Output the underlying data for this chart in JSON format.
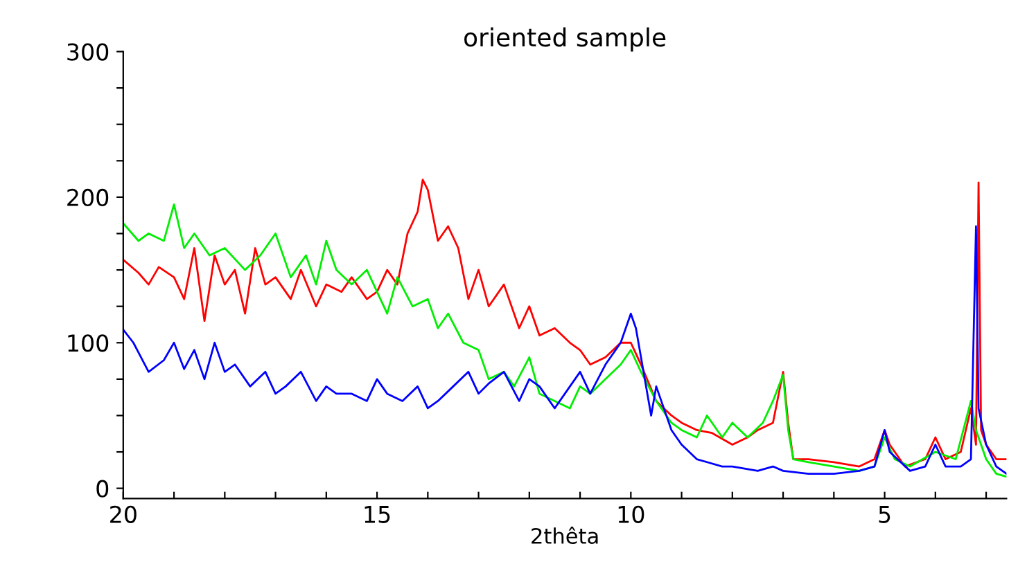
{
  "chart_data": {
    "type": "line",
    "title": "oriented sample",
    "xlabel": "2thêta",
    "xlim": [
      20,
      2.6
    ],
    "ylim": [
      -7,
      300
    ],
    "xticks": [
      20,
      {
        "value": 19,
        "label": null
      },
      {
        "value": 18,
        "label": null
      },
      {
        "value": 17,
        "label": null
      },
      {
        "value": 16,
        "label": null
      },
      15,
      {
        "value": 14,
        "label": null
      },
      {
        "value": 13,
        "label": null
      },
      {
        "value": 12,
        "label": null
      },
      {
        "value": 11,
        "label": null
      },
      10,
      {
        "value": 9,
        "label": null
      },
      {
        "value": 8,
        "label": null
      },
      {
        "value": 7,
        "label": null
      },
      {
        "value": 6,
        "label": null
      },
      5,
      {
        "value": 4,
        "label": null
      },
      {
        "value": 3,
        "label": null
      }
    ],
    "yticks": [
      0,
      {
        "value": 25,
        "label": null
      },
      {
        "value": 50,
        "label": null
      },
      {
        "value": 75,
        "label": null
      },
      100,
      {
        "value": 125,
        "label": null
      },
      {
        "value": 150,
        "label": null
      },
      {
        "value": 175,
        "label": null
      },
      200,
      {
        "value": 225,
        "label": null
      },
      {
        "value": 250,
        "label": null
      },
      {
        "value": 275,
        "label": null
      },
      300
    ],
    "grid": false,
    "legend": false,
    "marker": "none",
    "line_style": "solid",
    "series": [
      {
        "color": "#ff0000",
        "x": [
          20,
          19.7,
          19.5,
          19.3,
          19.0,
          18.8,
          18.6,
          18.4,
          18.2,
          18.0,
          17.8,
          17.6,
          17.4,
          17.2,
          17.0,
          16.7,
          16.5,
          16.2,
          16.0,
          15.7,
          15.5,
          15.2,
          15.0,
          14.8,
          14.6,
          14.4,
          14.2,
          14.1,
          14.0,
          13.8,
          13.6,
          13.4,
          13.2,
          13.0,
          12.8,
          12.5,
          12.2,
          12.0,
          11.8,
          11.5,
          11.2,
          11.0,
          10.8,
          10.5,
          10.2,
          10.0,
          9.8,
          9.5,
          9.2,
          9.0,
          8.7,
          8.4,
          8.0,
          7.7,
          7.5,
          7.2,
          7.0,
          6.9,
          6.8,
          6.5,
          6.0,
          5.5,
          5.2,
          5.0,
          4.9,
          4.6,
          4.2,
          4.0,
          3.8,
          3.5,
          3.3,
          3.2,
          3.15,
          3.1,
          3.0,
          2.8,
          2.6
        ],
        "values": [
          157,
          148,
          140,
          152,
          145,
          130,
          165,
          115,
          160,
          140,
          150,
          120,
          165,
          140,
          145,
          130,
          150,
          125,
          140,
          135,
          145,
          130,
          135,
          150,
          140,
          175,
          190,
          212,
          205,
          170,
          180,
          165,
          130,
          150,
          125,
          140,
          110,
          125,
          105,
          110,
          100,
          95,
          85,
          90,
          100,
          100,
          85,
          60,
          50,
          45,
          40,
          38,
          30,
          35,
          40,
          45,
          80,
          45,
          20,
          20,
          18,
          15,
          20,
          40,
          30,
          15,
          20,
          35,
          20,
          25,
          55,
          30,
          210,
          40,
          30,
          20,
          20
        ]
      },
      {
        "color": "#00ee00",
        "x": [
          20,
          19.7,
          19.5,
          19.2,
          19.0,
          18.8,
          18.6,
          18.3,
          18.0,
          17.6,
          17.3,
          17.0,
          16.7,
          16.4,
          16.2,
          16.0,
          15.8,
          15.5,
          15.2,
          15.0,
          14.8,
          14.6,
          14.3,
          14.0,
          13.8,
          13.6,
          13.3,
          13.0,
          12.8,
          12.5,
          12.3,
          12.0,
          11.8,
          11.5,
          11.2,
          11.0,
          10.8,
          10.5,
          10.2,
          10.0,
          9.8,
          9.5,
          9.2,
          9.0,
          8.7,
          8.5,
          8.2,
          8.0,
          7.7,
          7.4,
          7.2,
          7.0,
          6.9,
          6.8,
          6.5,
          6.0,
          5.5,
          5.2,
          5.0,
          4.8,
          4.5,
          4.0,
          3.6,
          3.3,
          3.2,
          3.0,
          2.8,
          2.6
        ],
        "values": [
          182,
          170,
          175,
          170,
          195,
          165,
          175,
          160,
          165,
          150,
          160,
          175,
          145,
          160,
          140,
          170,
          150,
          140,
          150,
          135,
          120,
          145,
          125,
          130,
          110,
          120,
          100,
          95,
          75,
          80,
          70,
          90,
          65,
          60,
          55,
          70,
          65,
          75,
          85,
          95,
          80,
          60,
          45,
          40,
          35,
          50,
          35,
          45,
          35,
          45,
          60,
          78,
          40,
          20,
          18,
          15,
          12,
          15,
          35,
          20,
          15,
          25,
          20,
          60,
          40,
          20,
          10,
          8
        ]
      },
      {
        "color": "#0000ff",
        "x": [
          20,
          19.8,
          19.5,
          19.2,
          19.0,
          18.8,
          18.6,
          18.4,
          18.2,
          18.0,
          17.8,
          17.5,
          17.2,
          17.0,
          16.8,
          16.5,
          16.2,
          16.0,
          15.8,
          15.5,
          15.2,
          15.0,
          14.8,
          14.5,
          14.2,
          14.0,
          13.8,
          13.5,
          13.2,
          13.0,
          12.8,
          12.5,
          12.2,
          12.0,
          11.8,
          11.5,
          11.2,
          11.0,
          10.8,
          10.5,
          10.2,
          10.0,
          9.9,
          9.8,
          9.6,
          9.5,
          9.2,
          9.0,
          8.7,
          8.5,
          8.2,
          8.0,
          7.5,
          7.2,
          7.0,
          6.5,
          6.0,
          5.5,
          5.2,
          5.0,
          4.9,
          4.5,
          4.2,
          4.0,
          3.8,
          3.5,
          3.3,
          3.2,
          3.15,
          3.0,
          2.8,
          2.6
        ],
        "values": [
          109,
          100,
          80,
          88,
          100,
          82,
          95,
          75,
          100,
          80,
          85,
          70,
          80,
          65,
          70,
          80,
          60,
          70,
          65,
          65,
          60,
          75,
          65,
          60,
          70,
          55,
          60,
          70,
          80,
          65,
          72,
          80,
          60,
          75,
          70,
          55,
          70,
          80,
          65,
          85,
          100,
          120,
          110,
          90,
          50,
          70,
          40,
          30,
          20,
          18,
          15,
          15,
          12,
          15,
          12,
          10,
          10,
          12,
          15,
          40,
          25,
          12,
          15,
          30,
          15,
          15,
          20,
          180,
          55,
          30,
          15,
          10
        ]
      }
    ]
  }
}
